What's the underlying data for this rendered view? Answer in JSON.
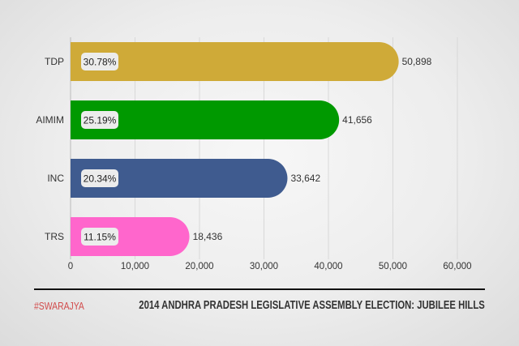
{
  "chart_data": {
    "type": "bar",
    "orientation": "horizontal",
    "categories": [
      "TDP",
      "AIMIM",
      "INC",
      "TRS"
    ],
    "values": [
      50898,
      41656,
      33642,
      18436
    ],
    "value_labels": [
      "50,898",
      "41,656",
      "33,642",
      "18,436"
    ],
    "percent_labels": [
      "30.78%",
      "25.19%",
      "20.34%",
      "11.15%"
    ],
    "colors": [
      "#cfaa38",
      "#009900",
      "#3f5b8f",
      "#ff66cc"
    ],
    "xlim": [
      0,
      60000
    ],
    "x_ticks": [
      "0",
      "10,000",
      "20,000",
      "30,000",
      "40,000",
      "50,000",
      "60,000"
    ],
    "grid": true,
    "title": "2014 ANDHRA PRADESH LEGISLATIVE ASSEMBLY ELECTION: JUBILEE HILLS"
  },
  "footer": {
    "brand": "#SWARAJYA",
    "title": "2014 ANDHRA PRADESH LEGISLATIVE ASSEMBLY ELECTION: JUBILEE HILLS"
  }
}
